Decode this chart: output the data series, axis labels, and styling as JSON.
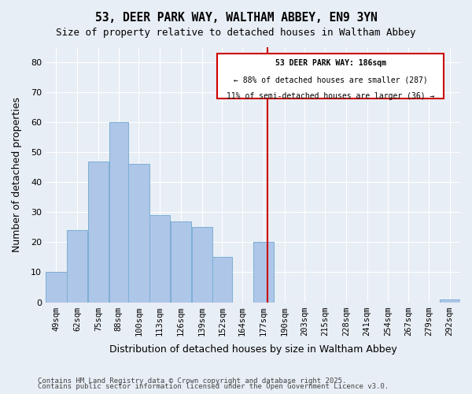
{
  "title_line1": "53, DEER PARK WAY, WALTHAM ABBEY, EN9 3YN",
  "title_line2": "Size of property relative to detached houses in Waltham Abbey",
  "xlabel": "Distribution of detached houses by size in Waltham Abbey",
  "ylabel": "Number of detached properties",
  "footnote1": "Contains HM Land Registry data © Crown copyright and database right 2025.",
  "footnote2": "Contains public sector information licensed under the Open Government Licence v3.0.",
  "annotation_title": "53 DEER PARK WAY: 186sqm",
  "annotation_line2": "← 88% of detached houses are smaller (287)",
  "annotation_line3": "11% of semi-detached houses are larger (36) →",
  "subject_value": 186,
  "bar_edges": [
    49,
    62,
    75,
    88,
    100,
    113,
    126,
    139,
    152,
    164,
    177,
    190,
    203,
    215,
    228,
    241,
    254,
    267,
    279,
    292,
    305
  ],
  "bar_heights": [
    10,
    24,
    47,
    60,
    46,
    29,
    27,
    25,
    15,
    0,
    20,
    0,
    0,
    0,
    0,
    0,
    0,
    0,
    0,
    1
  ],
  "bar_color": "#aec6e8",
  "bar_edge_color": "#7bafd4",
  "subject_line_color": "#cc0000",
  "annotation_box_color": "#cc0000",
  "background_color": "#e8eef5",
  "ylim": [
    0,
    85
  ],
  "yticks": [
    0,
    10,
    20,
    30,
    40,
    50,
    60,
    70,
    80
  ]
}
